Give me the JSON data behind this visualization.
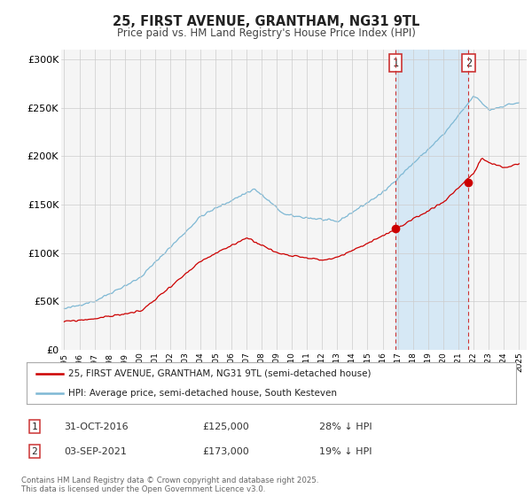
{
  "title": "25, FIRST AVENUE, GRANTHAM, NG31 9TL",
  "subtitle": "Price paid vs. HM Land Registry's House Price Index (HPI)",
  "ylabel_ticks": [
    "£0",
    "£50K",
    "£100K",
    "£150K",
    "£200K",
    "£250K",
    "£300K"
  ],
  "ytick_values": [
    0,
    50000,
    100000,
    150000,
    200000,
    250000,
    300000
  ],
  "ylim": [
    0,
    310000
  ],
  "hpi_color": "#7eb8d4",
  "price_color": "#cc0000",
  "marker1_x": 2016.833,
  "marker2_x": 2021.667,
  "marker1_date": "31-OCT-2016",
  "marker1_price": "£125,000",
  "marker1_hpi": "28% ↓ HPI",
  "marker2_date": "03-SEP-2021",
  "marker2_price": "£173,000",
  "marker2_hpi": "19% ↓ HPI",
  "legend_line1": "25, FIRST AVENUE, GRANTHAM, NG31 9TL (semi-detached house)",
  "legend_line2": "HPI: Average price, semi-detached house, South Kesteven",
  "footer": "Contains HM Land Registry data © Crown copyright and database right 2025.\nThis data is licensed under the Open Government Licence v3.0.",
  "background_color": "#ffffff",
  "plot_bg_color": "#f5f5f5",
  "shade_color": "#d6e8f5"
}
